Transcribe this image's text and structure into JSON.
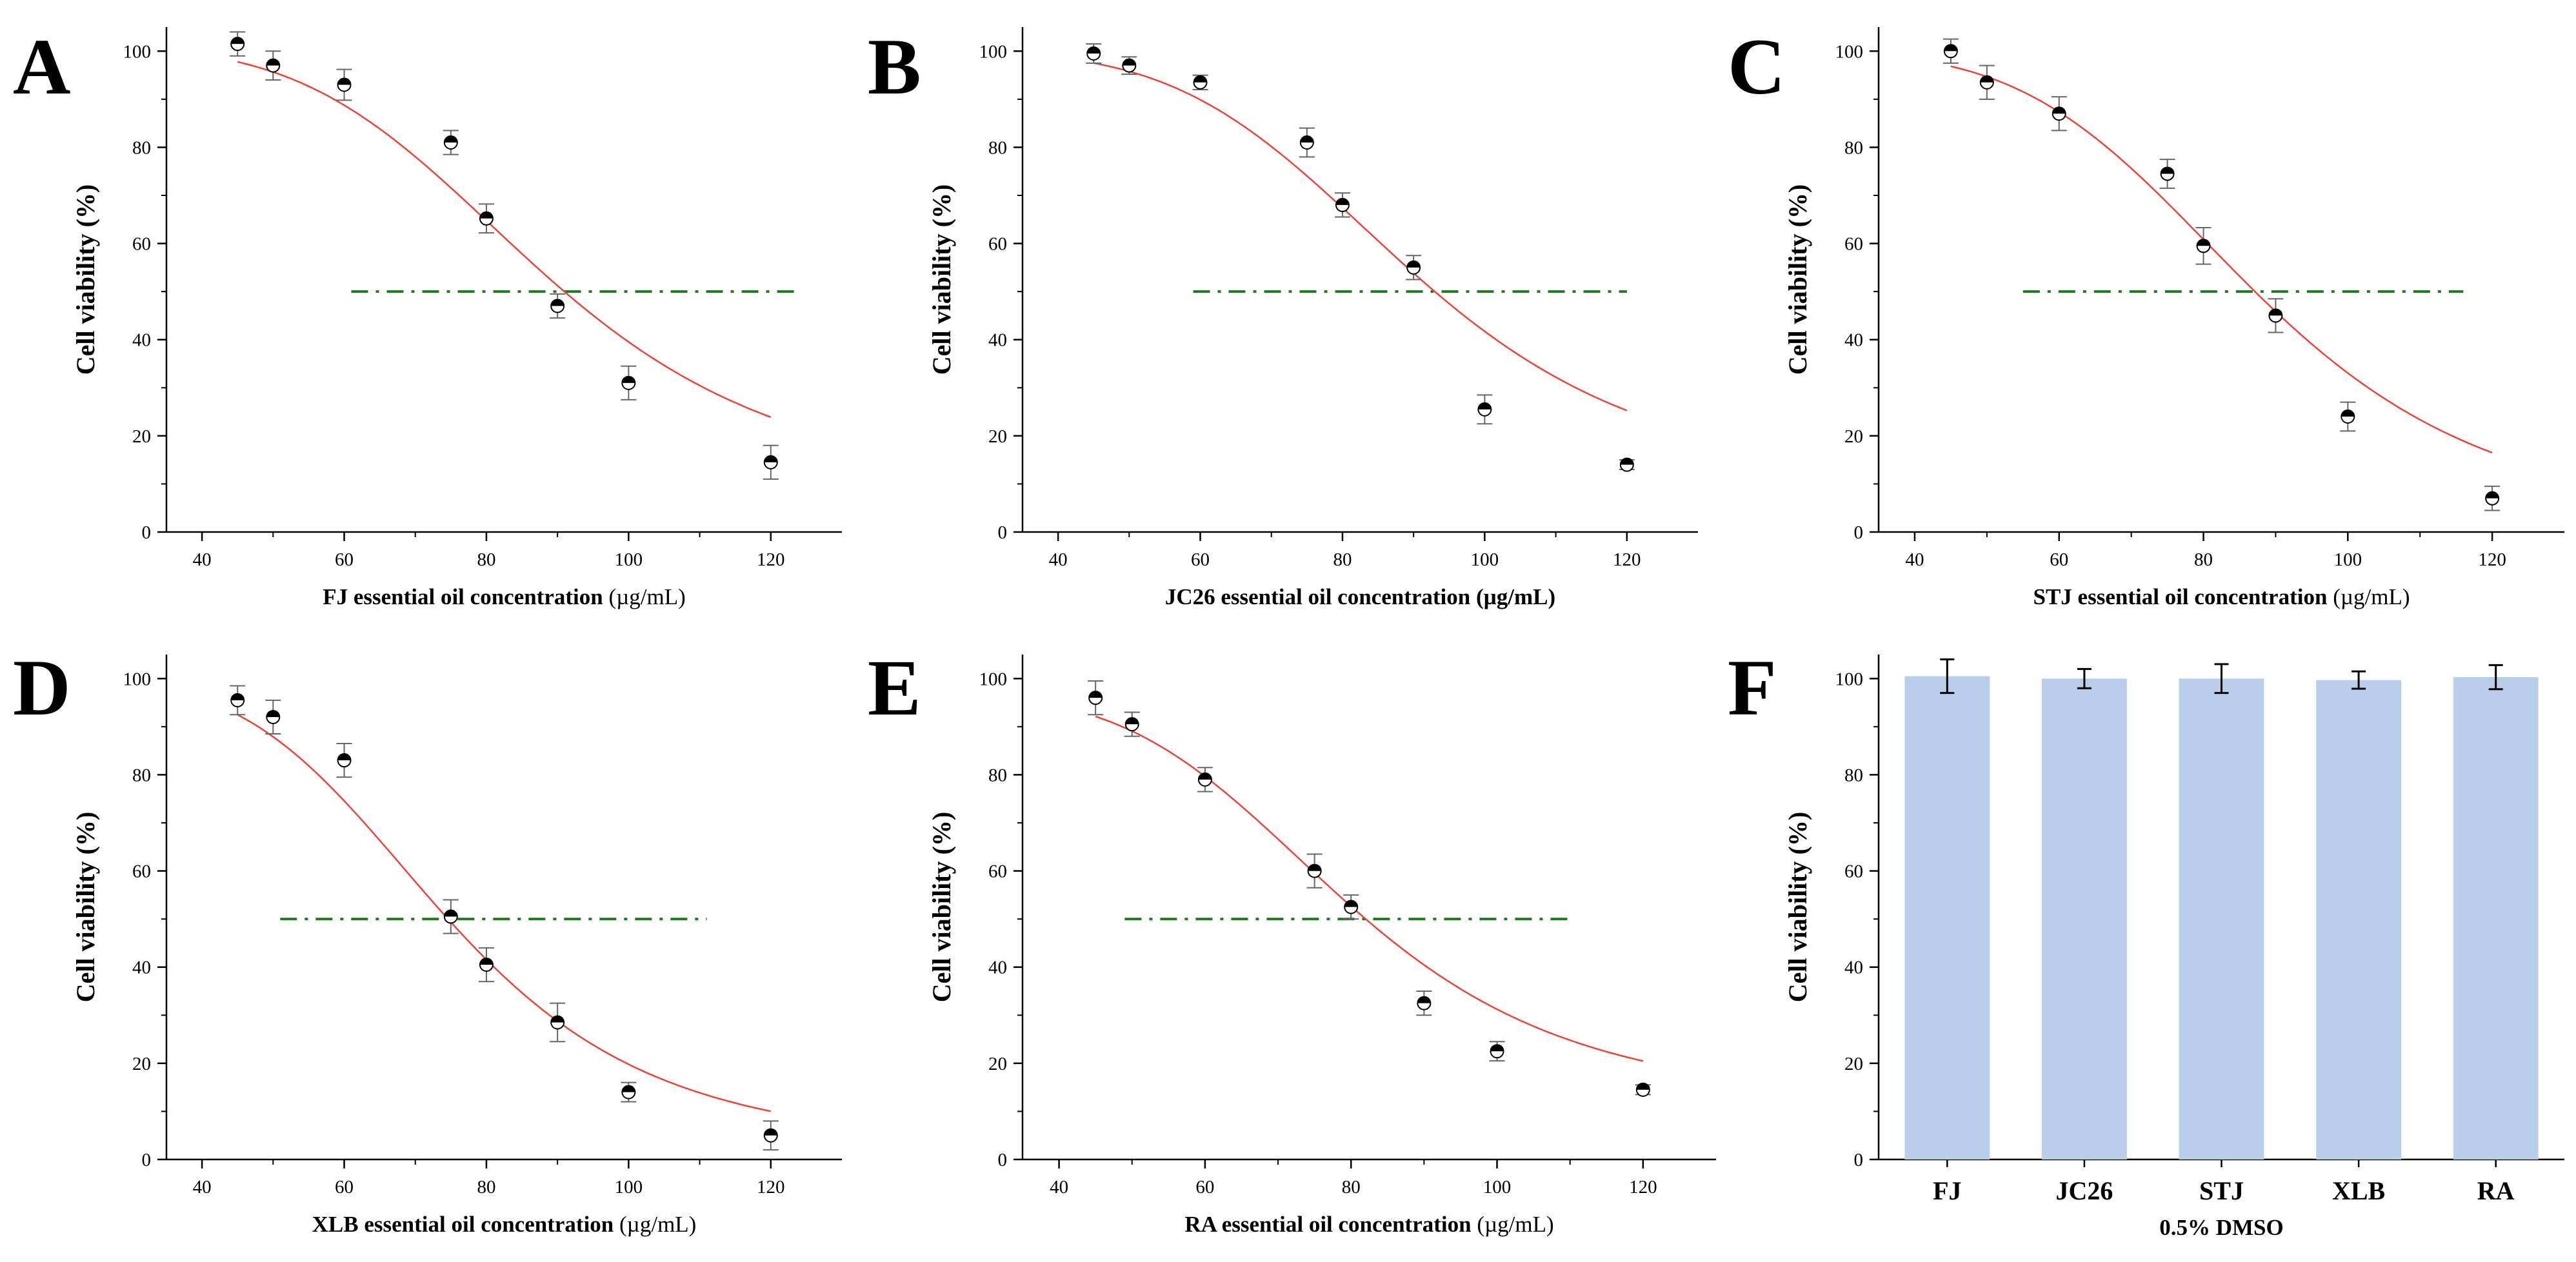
{
  "chart_data": [
    {
      "type": "scatter",
      "panel": "A",
      "xlabel_bold": "FJ essential oil concentration",
      "xlabel_unit": " (µg/mL)",
      "ylabel": "Cell viability (%)",
      "xlim": [
        35,
        130
      ],
      "ylim": [
        0,
        105
      ],
      "xticks": [
        40,
        60,
        80,
        100,
        120
      ],
      "yticks": [
        0,
        20,
        40,
        60,
        80,
        100
      ],
      "x": [
        45,
        50,
        60,
        75,
        80,
        90,
        100,
        120
      ],
      "y": [
        101.5,
        97,
        93,
        81,
        65.2,
        47,
        31,
        14.5
      ],
      "err": [
        2.5,
        3,
        3.2,
        2.5,
        3,
        2.5,
        3.5,
        3.5
      ],
      "fit": {
        "top": 101,
        "bottom": 8,
        "ec50": 87.5,
        "slope": 5
      },
      "threshold": {
        "y": 50,
        "x0": 61,
        "x1": 124
      }
    },
    {
      "type": "scatter",
      "panel": "B",
      "xlabel_bold": "JC26 essential oil concentration (µg/mL)",
      "xlabel_unit": "",
      "ylabel": "Cell viability (%)",
      "xlim": [
        35,
        130
      ],
      "ylim": [
        0,
        105
      ],
      "xticks": [
        40,
        60,
        80,
        100,
        120
      ],
      "yticks": [
        0,
        20,
        40,
        60,
        80,
        100
      ],
      "x": [
        45,
        50,
        60,
        75,
        80,
        90,
        100,
        120
      ],
      "y": [
        99.5,
        97,
        93.5,
        81,
        68,
        55,
        25.5,
        14
      ],
      "err": [
        2,
        1.8,
        1.5,
        3,
        2.5,
        2.5,
        3,
        1
      ],
      "fit": {
        "top": 100,
        "bottom": 9,
        "ec50": 89.5,
        "slope": 5.2
      },
      "threshold": {
        "y": 50,
        "x0": 59,
        "x1": 120
      }
    },
    {
      "type": "scatter",
      "panel": "C",
      "xlabel_bold": "STJ essential oil concentration",
      "xlabel_unit": " (µg/mL)",
      "ylabel": "Cell viability (%)",
      "xlim": [
        35,
        130
      ],
      "ylim": [
        0,
        105
      ],
      "xticks": [
        40,
        60,
        80,
        100,
        120
      ],
      "yticks": [
        0,
        20,
        40,
        60,
        80,
        100
      ],
      "x": [
        45,
        50,
        60,
        75,
        80,
        90,
        100,
        120
      ],
      "y": [
        100,
        93.5,
        87,
        74.5,
        59.5,
        45,
        24,
        7
      ],
      "err": [
        2.5,
        3.5,
        3.5,
        3,
        3.8,
        3.5,
        3,
        2.5
      ],
      "fit": {
        "top": 100,
        "bottom": 1,
        "ec50": 86.8,
        "slope": 5.2
      },
      "threshold": {
        "y": 50,
        "x0": 55,
        "x1": 116
      }
    },
    {
      "type": "scatter",
      "panel": "D",
      "xlabel_bold": "XLB essential oil concentration",
      "xlabel_unit": " (µg/mL)",
      "ylabel": "Cell viability (%)",
      "xlim": [
        35,
        130
      ],
      "ylim": [
        0,
        105
      ],
      "xticks": [
        40,
        60,
        80,
        100,
        120
      ],
      "yticks": [
        0,
        20,
        40,
        60,
        80,
        100
      ],
      "x": [
        45,
        50,
        60,
        75,
        80,
        90,
        100,
        120
      ],
      "y": [
        95.5,
        92,
        83,
        50.5,
        40.5,
        28.5,
        14,
        5
      ],
      "err": [
        3,
        3.5,
        3.5,
        3.5,
        3.5,
        4,
        2,
        3
      ],
      "fit": {
        "top": 100,
        "bottom": 2,
        "ec50": 74,
        "slope": 5
      },
      "threshold": {
        "y": 50,
        "x0": 51,
        "x1": 111
      }
    },
    {
      "type": "scatter",
      "panel": "E",
      "xlabel_bold": "RA essential oil concentration",
      "xlabel_unit": " (µg/mL)",
      "ylabel": "Cell viability (%)",
      "xlim": [
        35,
        130
      ],
      "ylim": [
        0,
        105
      ],
      "xticks": [
        40,
        60,
        80,
        100,
        120
      ],
      "yticks": [
        0,
        20,
        40,
        60,
        80,
        100
      ],
      "x": [
        45,
        50,
        60,
        75,
        80,
        90,
        100,
        120
      ],
      "y": [
        96,
        90.5,
        79,
        60,
        52.5,
        32.5,
        22.5,
        14.5
      ],
      "err": [
        3.5,
        2.5,
        2.5,
        3.5,
        2.5,
        2.5,
        2,
        1
      ],
      "fit": {
        "top": 97,
        "bottom": 11,
        "ec50": 79,
        "slope": 5
      },
      "threshold": {
        "y": 50,
        "x0": 49,
        "x1": 110
      }
    },
    {
      "type": "bar",
      "panel": "F",
      "xlabel": "0.5% DMSO",
      "ylabel": "Cell viability (%)",
      "ylim": [
        0,
        105
      ],
      "yticks": [
        0,
        20,
        40,
        60,
        80,
        100
      ],
      "categories": [
        "FJ",
        "JC26",
        "STJ",
        "XLB",
        "RA"
      ],
      "values": [
        100.5,
        100,
        100,
        99.7,
        100.3
      ],
      "err": [
        3.5,
        2,
        3,
        1.8,
        2.5
      ]
    }
  ],
  "colors": {
    "fit_line": "#e8443a",
    "threshold_line": "#1f7a1f",
    "bar_fill": "#b9cfe9",
    "axis": "#000000",
    "error_bar": "#666666"
  },
  "legend_glyph": "half-filled-circle-marker"
}
